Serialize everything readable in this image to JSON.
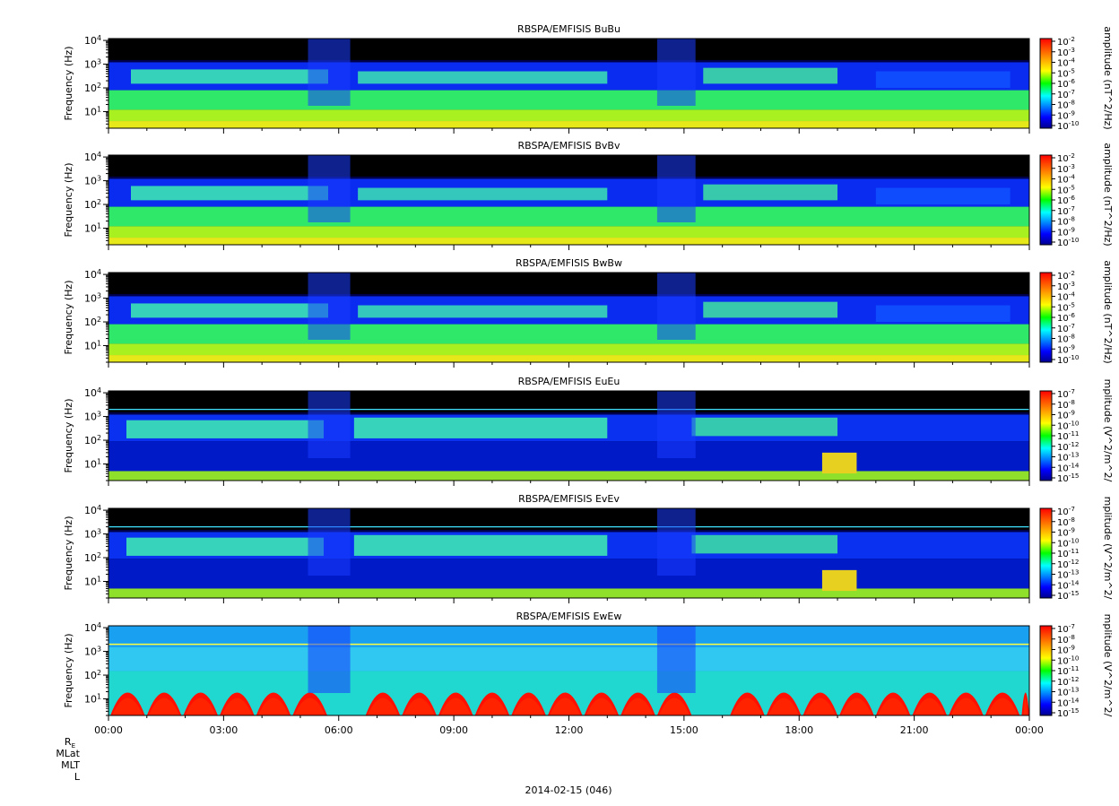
{
  "figure": {
    "date_label": "2014-02-15 (046)",
    "ephemeris_labels": [
      "R",
      "MLat",
      "MLT",
      "L"
    ],
    "ephemeris_re_subscript": "E"
  },
  "chart_data": [
    {
      "type": "heatmap",
      "title": "RBSPA/EMFISIS  BuBu",
      "ylabel": "Frequency (Hz)",
      "yscale": "log",
      "ylim": [
        2,
        12000
      ],
      "y_ticks": [
        "10^4",
        "10^3",
        "10^2",
        "10^1"
      ],
      "colorbar_label": "amplitude (nT^2/Hz)",
      "colorbar_ticks": [
        "10^-2",
        "10^-3",
        "10^-4",
        "10^-5",
        "10^-6",
        "10^-7",
        "10^-8",
        "10^-9",
        "10^-10"
      ],
      "field": "B"
    },
    {
      "type": "heatmap",
      "title": "RBSPA/EMFISIS  BvBv",
      "ylabel": "Frequency (Hz)",
      "yscale": "log",
      "ylim": [
        2,
        12000
      ],
      "y_ticks": [
        "10^4",
        "10^3",
        "10^2",
        "10^1"
      ],
      "colorbar_label": "amplitude (nT^2/Hz)",
      "colorbar_ticks": [
        "10^-2",
        "10^-3",
        "10^-4",
        "10^-5",
        "10^-6",
        "10^-7",
        "10^-8",
        "10^-9",
        "10^-10"
      ],
      "field": "B"
    },
    {
      "type": "heatmap",
      "title": "RBSPA/EMFISIS  BwBw",
      "ylabel": "Frequency (Hz)",
      "yscale": "log",
      "ylim": [
        2,
        12000
      ],
      "y_ticks": [
        "10^4",
        "10^3",
        "10^2",
        "10^1"
      ],
      "colorbar_label": "amplitude (nT^2/Hz)",
      "colorbar_ticks": [
        "10^-2",
        "10^-3",
        "10^-4",
        "10^-5",
        "10^-6",
        "10^-7",
        "10^-8",
        "10^-9",
        "10^-10"
      ],
      "field": "B"
    },
    {
      "type": "heatmap",
      "title": "RBSPA/EMFISIS  EuEu",
      "ylabel": "Frequency (Hz)",
      "yscale": "log",
      "ylim": [
        2,
        12000
      ],
      "y_ticks": [
        "10^4",
        "10^3",
        "10^2",
        "10^1"
      ],
      "colorbar_label": "mplitude (V^2/m^2/",
      "colorbar_ticks": [
        "10^-7",
        "10^-8",
        "10^-9",
        "10^-10",
        "10^-11",
        "10^-12",
        "10^-13",
        "10^-14",
        "10^-15"
      ],
      "field": "E"
    },
    {
      "type": "heatmap",
      "title": "RBSPA/EMFISIS  EvEv",
      "ylabel": "Frequency (Hz)",
      "yscale": "log",
      "ylim": [
        2,
        12000
      ],
      "y_ticks": [
        "10^4",
        "10^3",
        "10^2",
        "10^1"
      ],
      "colorbar_label": "mplitude (V^2/m^2/",
      "colorbar_ticks": [
        "10^-7",
        "10^-8",
        "10^-9",
        "10^-10",
        "10^-11",
        "10^-12",
        "10^-13",
        "10^-14",
        "10^-15"
      ],
      "field": "E"
    },
    {
      "type": "heatmap",
      "title": "RBSPA/EMFISIS  EwEw",
      "ylabel": "Frequency (Hz)",
      "yscale": "log",
      "ylim": [
        2,
        12000
      ],
      "y_ticks": [
        "10^4",
        "10^3",
        "10^2",
        "10^1"
      ],
      "colorbar_label": "mplitude (V^2/m^2/",
      "colorbar_ticks": [
        "10^-7",
        "10^-8",
        "10^-9",
        "10^-10",
        "10^-11",
        "10^-12",
        "10^-13",
        "10^-14",
        "10^-15"
      ],
      "field": "Ew"
    }
  ],
  "x_axis": {
    "ticks": [
      "00:00",
      "03:00",
      "06:00",
      "09:00",
      "12:00",
      "15:00",
      "18:00",
      "21:00",
      "00:00"
    ],
    "hours": [
      0,
      3,
      6,
      9,
      12,
      15,
      18,
      21,
      24
    ]
  },
  "colors": {
    "jet_stops": [
      "#00008f",
      "#0000ff",
      "#00ffff",
      "#00ff00",
      "#ffff00",
      "#ff7f00",
      "#ff0000"
    ],
    "background_black": "#000000"
  }
}
